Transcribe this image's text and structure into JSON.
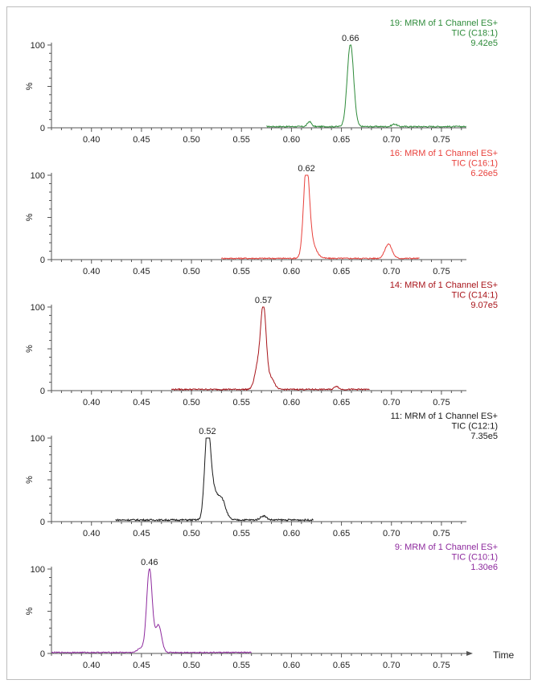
{
  "figure": {
    "time_label": "Time"
  },
  "chart_data": [
    {
      "type": "line",
      "header": [
        "19: MRM of 1 Channel ES+",
        "TIC (C18:1)",
        "9.42e5"
      ],
      "color": "#2e8b3a",
      "ylabel": "%",
      "y_ticks": [
        "100",
        "0"
      ],
      "ylim": [
        0,
        100
      ],
      "x_ticks": [
        "0.40",
        "0.45",
        "0.50",
        "0.55",
        "0.60",
        "0.65",
        "0.70",
        "0.75"
      ],
      "xlim": [
        0.36,
        0.775
      ],
      "x_range": [
        0.575,
        0.775
      ],
      "peaks": [
        {
          "rt": 0.659,
          "height": 100,
          "width": 0.0032
        },
        {
          "rt": 0.618,
          "height": 6,
          "width": 0.002
        },
        {
          "rt": 0.703,
          "height": 3,
          "width": 0.0025
        }
      ],
      "baseline": 1.5,
      "apex_label": "0.66",
      "apex_rt": 0.659
    },
    {
      "type": "line",
      "header": [
        "16: MRM of 1 Channel ES+",
        "TIC (C16:1)",
        "6.26e5"
      ],
      "color": "#e8413c",
      "ylabel": "%",
      "y_ticks": [
        "100",
        "0"
      ],
      "ylim": [
        0,
        100
      ],
      "x_ticks": [
        "0.40",
        "0.45",
        "0.50",
        "0.55",
        "0.60",
        "0.65",
        "0.70",
        "0.75"
      ],
      "xlim": [
        0.36,
        0.775
      ],
      "x_range": [
        0.53,
        0.728
      ],
      "peaks": [
        {
          "rt": 0.615,
          "height": 100,
          "width": 0.0028
        },
        {
          "rt": 0.619,
          "height": 20,
          "width": 0.005
        },
        {
          "rt": 0.697,
          "height": 17,
          "width": 0.0035
        }
      ],
      "baseline": 1.5,
      "apex_label": "0.62",
      "apex_rt": 0.615
    },
    {
      "type": "line",
      "header": [
        "14: MRM of 1 Channel ES+",
        "TIC (C14:1)",
        "9.07e5"
      ],
      "color": "#a8141a",
      "ylabel": "%",
      "y_ticks": [
        "100",
        "0"
      ],
      "ylim": [
        0,
        100
      ],
      "x_ticks": [
        "0.40",
        "0.45",
        "0.50",
        "0.55",
        "0.60",
        "0.65",
        "0.70",
        "0.75"
      ],
      "xlim": [
        0.36,
        0.775
      ],
      "x_range": [
        0.48,
        0.678
      ],
      "peaks": [
        {
          "rt": 0.572,
          "height": 100,
          "width": 0.0028
        },
        {
          "rt": 0.566,
          "height": 25,
          "width": 0.003
        },
        {
          "rt": 0.58,
          "height": 13,
          "width": 0.003
        },
        {
          "rt": 0.645,
          "height": 4,
          "width": 0.002
        }
      ],
      "baseline": 1.5,
      "apex_label": "0.57",
      "apex_rt": 0.572
    },
    {
      "type": "line",
      "header": [
        "11: MRM of 1 Channel ES+",
        "TIC (C12:1)",
        "7.35e5"
      ],
      "color": "#1a1a1a",
      "ylabel": "%",
      "y_ticks": [
        "100",
        "0"
      ],
      "ylim": [
        0,
        100
      ],
      "x_ticks": [
        "0.40",
        "0.45",
        "0.50",
        "0.55",
        "0.60",
        "0.65",
        "0.70",
        "0.75"
      ],
      "xlim": [
        0.36,
        0.775
      ],
      "x_range": [
        0.424,
        0.622
      ],
      "peaks": [
        {
          "rt": 0.516,
          "height": 100,
          "width": 0.0028
        },
        {
          "rt": 0.521,
          "height": 35,
          "width": 0.004
        },
        {
          "rt": 0.53,
          "height": 25,
          "width": 0.004
        },
        {
          "rt": 0.572,
          "height": 5,
          "width": 0.003
        }
      ],
      "baseline": 2,
      "apex_label": "0.52",
      "apex_rt": 0.516
    },
    {
      "type": "line",
      "header": [
        "9: MRM of 1 Channel ES+",
        "TIC (C10:1)",
        "1.30e6"
      ],
      "color": "#8e2a9e",
      "ylabel": "%",
      "y_ticks": [
        "100",
        "0"
      ],
      "ylim": [
        0,
        100
      ],
      "x_ticks": [
        "0.40",
        "0.45",
        "0.50",
        "0.55",
        "0.60",
        "0.65",
        "0.70",
        "0.75"
      ],
      "xlim": [
        0.36,
        0.775
      ],
      "x_range": [
        0.36,
        0.56
      ],
      "peaks": [
        {
          "rt": 0.458,
          "height": 100,
          "width": 0.0028
        },
        {
          "rt": 0.467,
          "height": 32,
          "width": 0.003
        },
        {
          "rt": 0.449,
          "height": 5,
          "width": 0.003
        }
      ],
      "baseline": 1.2,
      "apex_label": "0.46",
      "apex_rt": 0.458
    }
  ]
}
